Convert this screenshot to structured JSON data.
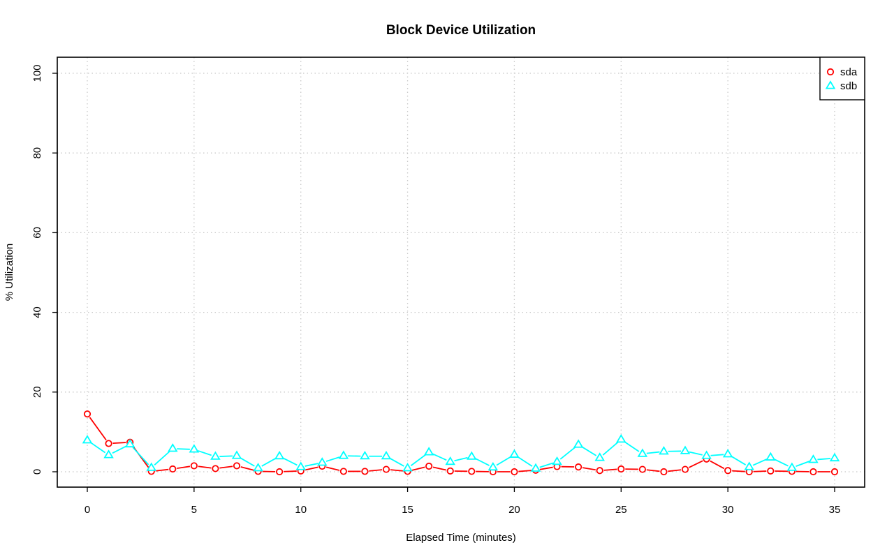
{
  "chart_data": {
    "type": "line",
    "title": "Block Device Utilization",
    "xlabel": "Elapsed Time (minutes)",
    "ylabel": "% Utilization",
    "xlim": [
      0,
      35
    ],
    "ylim": [
      0,
      100
    ],
    "x_ticks": [
      0,
      5,
      10,
      15,
      20,
      25,
      30,
      35
    ],
    "y_ticks": [
      0,
      20,
      40,
      60,
      80,
      100
    ],
    "grid": true,
    "legend_position": "top-right",
    "x": [
      0,
      1,
      2,
      3,
      4,
      5,
      6,
      7,
      8,
      9,
      10,
      11,
      12,
      13,
      14,
      15,
      16,
      17,
      18,
      19,
      20,
      21,
      22,
      23,
      24,
      25,
      26,
      27,
      28,
      29,
      30,
      31,
      32,
      33,
      34,
      35
    ],
    "series": [
      {
        "name": "sda",
        "color": "#ff0000",
        "marker": "circle",
        "values": [
          14.5,
          7.1,
          7.4,
          0.1,
          0.7,
          1.5,
          0.8,
          1.5,
          0.1,
          0.0,
          0.2,
          1.4,
          0.1,
          0.1,
          0.6,
          0.1,
          1.4,
          0.2,
          0.1,
          0.0,
          0.0,
          0.4,
          1.3,
          1.2,
          0.3,
          0.7,
          0.6,
          0.0,
          0.6,
          3.2,
          0.3,
          0.0,
          0.2,
          0.1,
          0.0,
          0.0
        ]
      },
      {
        "name": "sdb",
        "color": "#00ffff",
        "marker": "triangle",
        "values": [
          7.9,
          4.2,
          6.9,
          1.0,
          5.8,
          5.6,
          3.8,
          4.0,
          0.9,
          3.9,
          1.2,
          2.3,
          4.0,
          3.9,
          3.9,
          0.9,
          4.9,
          2.5,
          3.8,
          1.1,
          4.3,
          0.8,
          2.5,
          6.8,
          3.5,
          8.1,
          4.5,
          5.1,
          5.2,
          4.0,
          4.4,
          1.2,
          3.6,
          1.0,
          3.0,
          3.4
        ]
      }
    ]
  }
}
